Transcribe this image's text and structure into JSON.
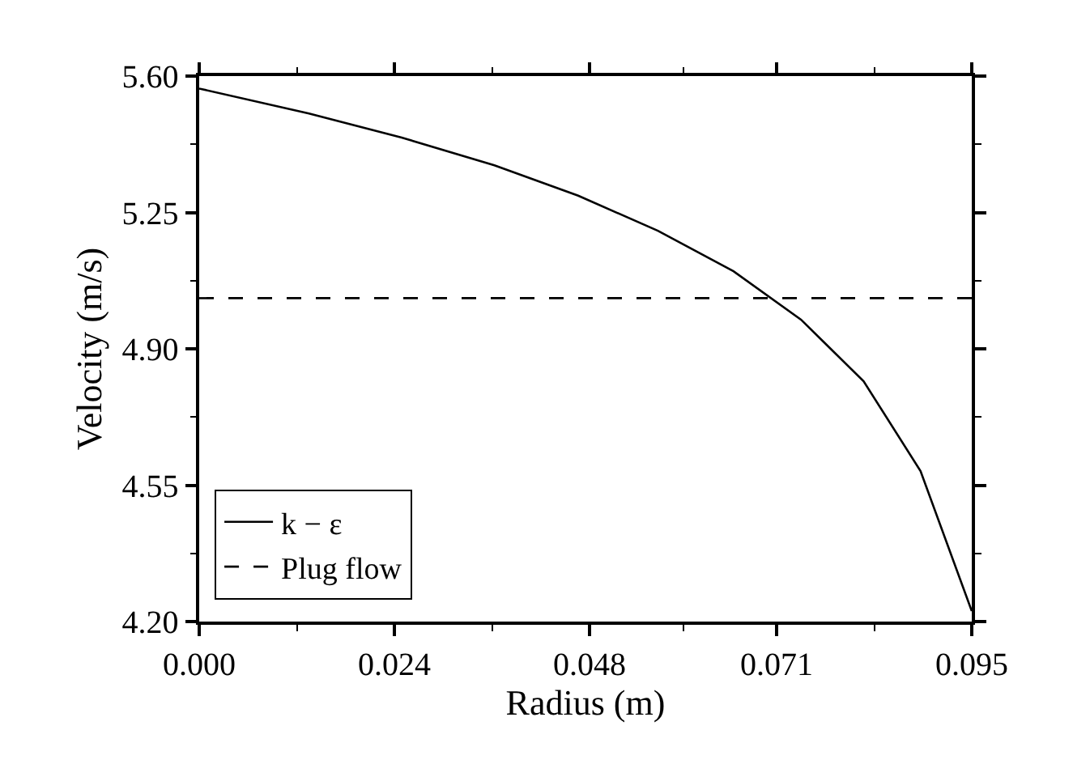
{
  "chart_data": {
    "type": "line",
    "xlabel": "Radius (m)",
    "ylabel": "Velocity (m/s)",
    "xlim": [
      0,
      0.095
    ],
    "xticks": [
      {
        "value": 0,
        "label": "0.000"
      },
      0.024,
      0.048,
      0.071,
      0.095
    ],
    "ylim": [
      4.2,
      5.6
    ],
    "yticks": [
      {
        "value": 4.2,
        "label": "4.20"
      },
      4.55,
      {
        "value": 4.9,
        "label": "4.90"
      },
      5.25,
      {
        "value": 5.6,
        "label": "5.60"
      }
    ],
    "legend": "bottom left",
    "marker": "none",
    "series": [
      {
        "name": "k − ε",
        "color": "#000000",
        "line_style": "solid",
        "x": [
          0,
          0.0135,
          0.0249,
          0.0363,
          0.0466,
          0.0564,
          0.0657,
          0.074,
          0.0817,
          0.0887,
          0.095
        ],
        "values": [
          5.568,
          5.504,
          5.442,
          5.371,
          5.293,
          5.203,
          5.099,
          4.975,
          4.817,
          4.586,
          4.227
        ]
      },
      {
        "name": "Plug flow",
        "color": "#000000",
        "line_style": "dashed",
        "x": [
          0,
          0.095
        ],
        "values": [
          5.03,
          5.03
        ]
      }
    ]
  }
}
